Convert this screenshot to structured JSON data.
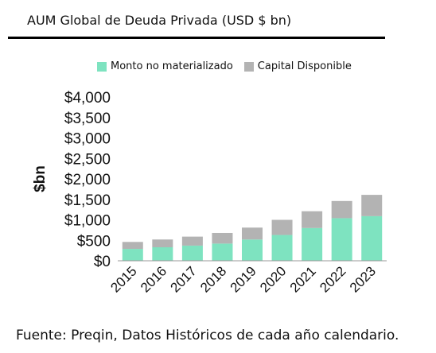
{
  "chart_data": {
    "type": "bar",
    "stacked": true,
    "title": "AUM Global de Deuda Privada (USD $ bn)",
    "ylabel": "$bn",
    "xlabel": "",
    "categories": [
      "2015",
      "2016",
      "2017",
      "2018",
      "2019",
      "2020",
      "2021",
      "2022",
      "2023"
    ],
    "series": [
      {
        "name": "Monto no materializado",
        "color": "#7ee3c0",
        "values": [
          290,
          330,
          370,
          420,
          520,
          630,
          800,
          1040,
          1090
        ]
      },
      {
        "name": "Capital Disponible",
        "color": "#b3b3b3",
        "values": [
          170,
          190,
          220,
          260,
          290,
          370,
          410,
          420,
          520
        ]
      }
    ],
    "ylim": [
      0,
      4000
    ],
    "yticks": [
      "$0",
      "$500",
      "$1,000",
      "$1,500",
      "$2,000",
      "$2,500",
      "$3,000",
      "$3,500",
      "$4,000"
    ],
    "ytick_values": [
      0,
      500,
      1000,
      1500,
      2000,
      2500,
      3000,
      3500,
      4000
    ],
    "legend_position": "top",
    "grid": false
  },
  "source_text": "Fuente: Preqin, Datos Históricos de cada año calendario."
}
